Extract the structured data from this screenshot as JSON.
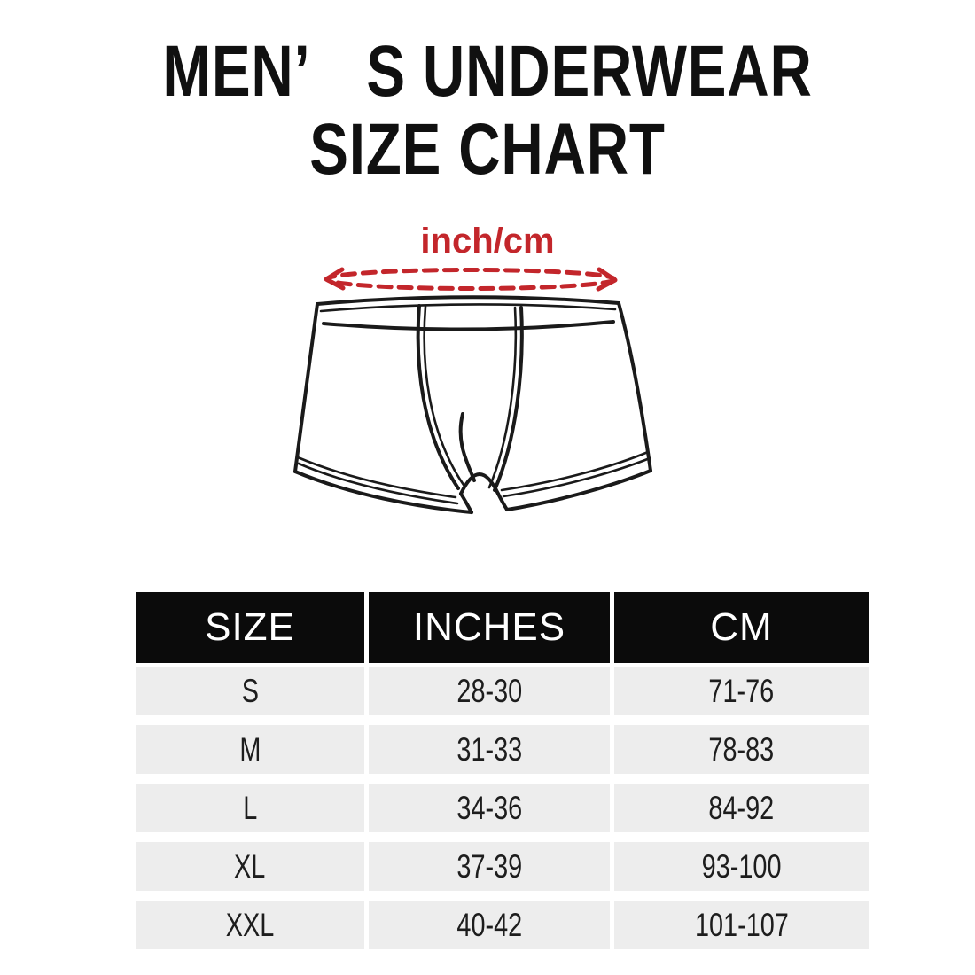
{
  "header": {
    "title_line1": "MEN’　S UNDERWEAR",
    "title_line2": "SIZE CHART"
  },
  "illustration": {
    "measure_label": "inch/cm",
    "garment": "boxer-briefs-outline-drawing",
    "measure_marker": "red-dashed-ellipse-around-waist"
  },
  "size_table": {
    "columns": [
      "SIZE",
      "INCHES",
      "CM"
    ],
    "rows": [
      [
        "S",
        "28-30",
        "71-76"
      ],
      [
        "M",
        "31-33",
        "78-83"
      ],
      [
        "L",
        "34-36",
        "84-92"
      ],
      [
        "XL",
        "37-39",
        "93-100"
      ],
      [
        "XXL",
        "40-42",
        "101-107"
      ]
    ]
  },
  "colors": {
    "accent": "#c3262b",
    "line": "#1a1a1a",
    "header-bg": "#0b0b0b",
    "header-fg": "#ffffff",
    "row-bg": "#ededed"
  },
  "chart_data": {
    "type": "table",
    "title": "MEN’S UNDERWEAR SIZE CHART",
    "columns": [
      "SIZE",
      "INCHES",
      "CM"
    ],
    "rows": [
      [
        "S",
        "28-30",
        "71-76"
      ],
      [
        "M",
        "31-33",
        "78-83"
      ],
      [
        "L",
        "34-36",
        "84-92"
      ],
      [
        "XL",
        "37-39",
        "93-100"
      ],
      [
        "XXL",
        "40-42",
        "101-107"
      ]
    ]
  }
}
